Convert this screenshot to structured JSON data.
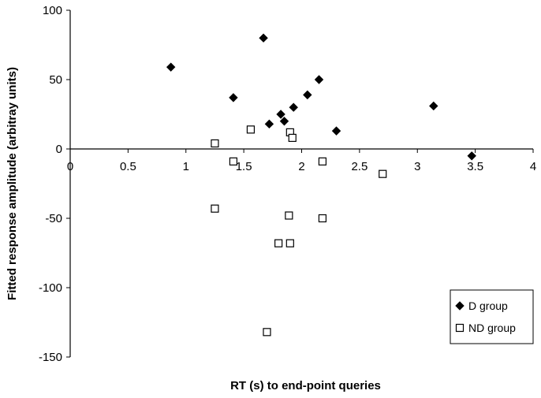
{
  "chart_data": {
    "type": "scatter",
    "title": "",
    "xlabel": "RT (s) to end-point queries",
    "ylabel": "Fitted response amplitude (arbitray units)",
    "xlim": [
      0,
      4
    ],
    "ylim": [
      -150,
      100
    ],
    "x_ticks": [
      0,
      0.5,
      1,
      1.5,
      2,
      2.5,
      3,
      3.5,
      4
    ],
    "x_tick_labels": [
      "0",
      "0.5",
      "1",
      "1.5",
      "2",
      "2.5",
      "3",
      "3.5",
      "4"
    ],
    "y_ticks": [
      -150,
      -100,
      -50,
      0,
      50,
      100
    ],
    "y_tick_labels": [
      "-150",
      "-100",
      "-50",
      "0",
      "50",
      "100"
    ],
    "grid": false,
    "legend_position": "bottom-right",
    "series": [
      {
        "name": "D group",
        "marker": "filled-diamond",
        "color": "#000000",
        "points": [
          {
            "x": 0.87,
            "y": 59
          },
          {
            "x": 1.41,
            "y": 37
          },
          {
            "x": 1.67,
            "y": 80
          },
          {
            "x": 1.72,
            "y": 18
          },
          {
            "x": 1.82,
            "y": 25
          },
          {
            "x": 1.85,
            "y": 20
          },
          {
            "x": 1.93,
            "y": 30
          },
          {
            "x": 2.05,
            "y": 39
          },
          {
            "x": 2.15,
            "y": 50
          },
          {
            "x": 2.3,
            "y": 13
          },
          {
            "x": 3.14,
            "y": 31
          },
          {
            "x": 3.47,
            "y": -5
          }
        ]
      },
      {
        "name": "ND group",
        "marker": "hollow-square",
        "color": "#000000",
        "points": [
          {
            "x": 1.25,
            "y": 4
          },
          {
            "x": 1.41,
            "y": -9
          },
          {
            "x": 1.56,
            "y": 14
          },
          {
            "x": 1.9,
            "y": 12
          },
          {
            "x": 1.92,
            "y": 8
          },
          {
            "x": 2.18,
            "y": -9
          },
          {
            "x": 2.7,
            "y": -18
          },
          {
            "x": 1.25,
            "y": -43
          },
          {
            "x": 1.89,
            "y": -48
          },
          {
            "x": 2.18,
            "y": -50
          },
          {
            "x": 1.8,
            "y": -68
          },
          {
            "x": 1.9,
            "y": -68
          },
          {
            "x": 1.7,
            "y": -132
          }
        ]
      }
    ]
  }
}
